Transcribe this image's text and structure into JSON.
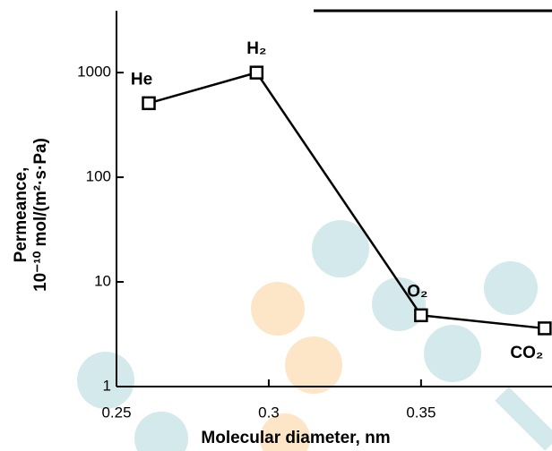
{
  "chart_data": {
    "type": "line",
    "xlabel": "Molecular diameter, nm",
    "ylabel": [
      "Permeance,",
      "10⁻¹⁰ mol/(m²·s·Pa)"
    ],
    "x": [
      0.2606,
      0.296,
      0.35,
      0.3906
    ],
    "series": [
      {
        "color": "#000000",
        "values": [
          510,
          1000,
          4.8,
          3.6
        ]
      }
    ],
    "point_labels": [
      "He",
      "H₂",
      "O₂",
      "CO₂"
    ],
    "xlim": [
      0.25,
      0.393
    ],
    "xticks": [
      0.25,
      0.3,
      0.35
    ],
    "ylim": [
      1,
      3900
    ],
    "yticks": [
      1,
      10,
      100,
      1000
    ],
    "ylog": true
  }
}
